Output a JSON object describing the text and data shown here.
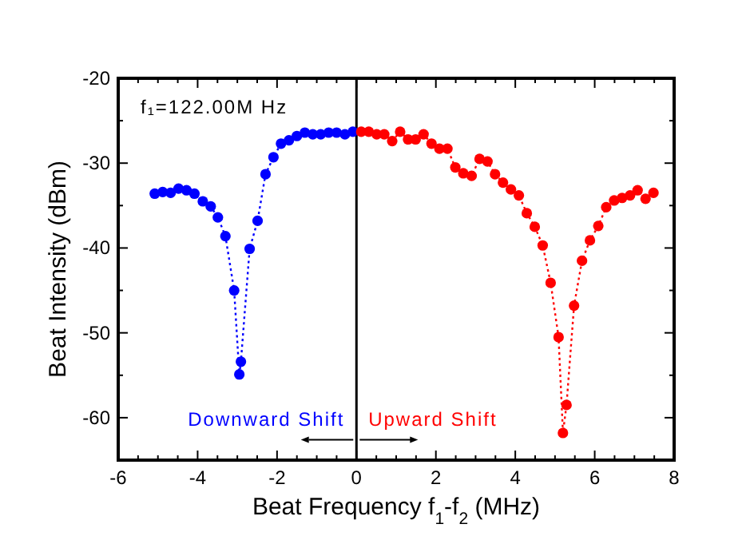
{
  "chart_data": {
    "type": "line",
    "xlabel": "Beat Frequency f$_{1}$-f$_{2}$ (MHz)",
    "ylabel": "Beat Intensity (dBm)",
    "xlim": [
      -6,
      8
    ],
    "ylim": [
      -65,
      -20
    ],
    "xticks": [
      -6,
      {
        "value": -5.5,
        "label": null
      },
      {
        "value": -5,
        "label": null
      },
      {
        "value": -4.5,
        "label": null
      },
      -4,
      {
        "value": -3.5,
        "label": null
      },
      {
        "value": -3,
        "label": null
      },
      {
        "value": -2.5,
        "label": null
      },
      -2,
      {
        "value": -1.5,
        "label": null
      },
      {
        "value": -1,
        "label": null
      },
      {
        "value": -0.5,
        "label": null
      },
      0,
      {
        "value": 0.5,
        "label": null
      },
      {
        "value": 1,
        "label": null
      },
      {
        "value": 1.5,
        "label": null
      },
      2,
      {
        "value": 2.5,
        "label": null
      },
      {
        "value": 3,
        "label": null
      },
      {
        "value": 3.5,
        "label": null
      },
      4,
      {
        "value": 4.5,
        "label": null
      },
      {
        "value": 5,
        "label": null
      },
      {
        "value": 5.5,
        "label": null
      },
      6,
      {
        "value": 6.5,
        "label": null
      },
      {
        "value": 7,
        "label": null
      },
      {
        "value": 7.5,
        "label": null
      },
      8
    ],
    "yticks": [
      -20,
      {
        "value": -25,
        "label": null
      },
      -30,
      {
        "value": -35,
        "label": null
      },
      -40,
      {
        "value": -45,
        "label": null
      },
      -50,
      {
        "value": -55,
        "label": null
      },
      -60
    ],
    "grid": false,
    "marker": "circle",
    "line_style": "dotted",
    "ref_lines": [
      {
        "axis": "x",
        "value": 0,
        "color": "#000000",
        "line_style": "solid"
      }
    ],
    "annotations": [
      "f₁=122.00M Hz",
      "Downward Shift",
      "Upward Shift"
    ],
    "series": [
      {
        "color": "#0000ff",
        "x": [
          -5.08,
          -4.88,
          -4.68,
          -4.48,
          -4.28,
          -4.08,
          -3.87,
          -3.67,
          -3.49,
          -3.3,
          -3.08,
          -2.95,
          -2.91,
          -2.69,
          -2.49,
          -2.29,
          -2.09,
          -1.9,
          -1.7,
          -1.5,
          -1.3,
          -1.1,
          -0.9,
          -0.7,
          -0.5,
          -0.29,
          -0.09
        ],
        "values": [
          -33.6,
          -33.4,
          -33.5,
          -33.0,
          -33.2,
          -33.6,
          -34.5,
          -35.1,
          -36.4,
          -38.6,
          -45.0,
          -54.9,
          -53.4,
          -40.1,
          -36.8,
          -31.3,
          -29.3,
          -27.7,
          -27.3,
          -26.8,
          -26.4,
          -26.6,
          -26.6,
          -26.4,
          -26.4,
          -26.6,
          -26.3
        ]
      },
      {
        "color": "#ff0000",
        "x": [
          0.12,
          0.31,
          0.51,
          0.7,
          0.9,
          1.1,
          1.3,
          1.49,
          1.69,
          1.89,
          2.09,
          2.29,
          2.49,
          2.69,
          2.9,
          3.1,
          3.3,
          3.49,
          3.69,
          3.89,
          4.09,
          4.29,
          4.49,
          4.69,
          4.89,
          5.09,
          5.2,
          5.29,
          5.48,
          5.68,
          5.88,
          6.09,
          6.29,
          6.49,
          6.69,
          6.89,
          7.08,
          7.28,
          7.48
        ],
        "values": [
          -26.3,
          -26.3,
          -26.6,
          -26.6,
          -27.4,
          -26.3,
          -27.2,
          -27.2,
          -26.6,
          -27.7,
          -28.3,
          -28.3,
          -30.5,
          -31.2,
          -31.5,
          -29.5,
          -29.8,
          -31.3,
          -32.3,
          -33.1,
          -33.8,
          -35.9,
          -37.5,
          -39.7,
          -44.1,
          -50.5,
          -61.8,
          -58.5,
          -46.8,
          -41.5,
          -39.1,
          -37.4,
          -35.2,
          -34.4,
          -34.1,
          -33.8,
          -33.2,
          -34.2,
          -33.5
        ]
      }
    ]
  }
}
